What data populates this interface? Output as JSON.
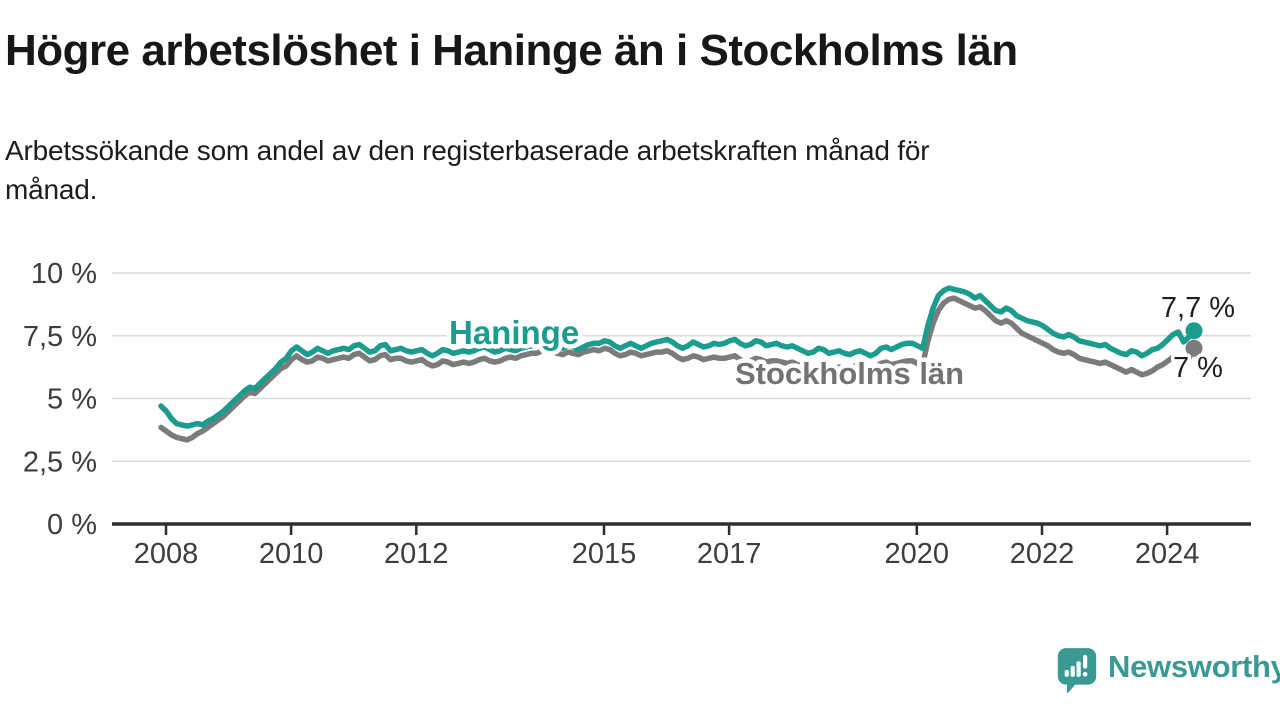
{
  "header": {
    "title": "Högre arbetslöshet i Haninge än i Stockholms län",
    "subtitle_lines": [
      "Arbetssökande som andel av den registerbaserade arbetskraften månad för",
      "månad."
    ]
  },
  "branding": {
    "logo_text": "Newsworthy",
    "logo_icon": "newsworthy-speech-bubble-bar-chart-icon",
    "brand_color": "#3a9a93"
  },
  "chart_data": {
    "type": "line",
    "title": "Högre arbetslöshet i Haninge än i Stockholms län",
    "subtitle": "Arbetssökande som andel av den registerbaserade arbetskraften månad för månad.",
    "unit": "%",
    "x_monthly_from": "2008-01",
    "x_monthly_to": "2024-07",
    "grid": "horizontal",
    "legend": "inline-labels",
    "ylim": [
      0,
      10
    ],
    "y_tick_values": [
      10,
      7.5,
      5,
      2.5,
      0
    ],
    "y_tick_labels": [
      "10 %",
      "7,5 %",
      "5 %",
      "2,5 %",
      "0 %"
    ],
    "x_tick_years": [
      2008,
      2010,
      2012,
      2015,
      2017,
      2020,
      2022,
      2024
    ],
    "x_tick_labels": [
      "2008",
      "2010",
      "2012",
      "2015",
      "2017",
      "2020",
      "2022",
      "2024"
    ],
    "axis_color": "#2f2f2f",
    "gridline_color": "#d9d9d9",
    "series": [
      {
        "name": "Haninge",
        "color": "#1b9c8e",
        "label_color": "#1b9c8e",
        "end_label": "7,7 %",
        "end_value": 7.7,
        "values": [
          4.7,
          4.5,
          4.2,
          4.0,
          3.95,
          3.9,
          3.95,
          4.0,
          3.95,
          4.1,
          4.2,
          4.35,
          4.5,
          4.7,
          4.9,
          5.1,
          5.3,
          5.45,
          5.4,
          5.6,
          5.8,
          6.0,
          6.2,
          6.45,
          6.6,
          6.9,
          7.05,
          6.9,
          6.75,
          6.85,
          7.0,
          6.9,
          6.8,
          6.9,
          6.95,
          7.0,
          6.95,
          7.1,
          7.15,
          7.0,
          6.85,
          6.9,
          7.1,
          7.15,
          6.9,
          6.95,
          7.0,
          6.9,
          6.85,
          6.9,
          6.95,
          6.8,
          6.7,
          6.8,
          6.95,
          6.9,
          6.8,
          6.85,
          6.9,
          6.85,
          6.9,
          7.0,
          7.05,
          6.95,
          6.85,
          6.9,
          7.0,
          6.95,
          6.9,
          7.0,
          7.05,
          7.1,
          7.1,
          7.2,
          7.25,
          7.15,
          7.05,
          7.0,
          7.1,
          7.05,
          6.95,
          7.05,
          7.15,
          7.2,
          7.2,
          7.3,
          7.25,
          7.1,
          7.0,
          7.1,
          7.2,
          7.1,
          7.0,
          7.1,
          7.2,
          7.25,
          7.3,
          7.35,
          7.25,
          7.1,
          7.0,
          7.1,
          7.25,
          7.15,
          7.05,
          7.1,
          7.2,
          7.15,
          7.2,
          7.3,
          7.35,
          7.2,
          7.1,
          7.15,
          7.3,
          7.25,
          7.1,
          7.15,
          7.2,
          7.1,
          7.05,
          7.1,
          7.0,
          6.9,
          6.8,
          6.85,
          7.0,
          6.95,
          6.8,
          6.85,
          6.9,
          6.8,
          6.75,
          6.85,
          6.9,
          6.8,
          6.7,
          6.8,
          7.0,
          7.05,
          6.95,
          7.05,
          7.15,
          7.2,
          7.2,
          7.1,
          7.0,
          7.9,
          8.6,
          9.1,
          9.3,
          9.4,
          9.35,
          9.3,
          9.25,
          9.15,
          9.0,
          9.1,
          8.9,
          8.7,
          8.5,
          8.45,
          8.6,
          8.5,
          8.3,
          8.2,
          8.1,
          8.05,
          8.0,
          7.9,
          7.75,
          7.6,
          7.5,
          7.45,
          7.55,
          7.45,
          7.3,
          7.25,
          7.2,
          7.15,
          7.1,
          7.15,
          7.0,
          6.9,
          6.8,
          6.75,
          6.9,
          6.85,
          6.7,
          6.8,
          6.95,
          7.0,
          7.15,
          7.35,
          7.55,
          7.65,
          7.25,
          7.45,
          7.7
        ]
      },
      {
        "name": "Stockholms län",
        "color": "#7b7b7b",
        "label_color": "#737373",
        "end_label": "7 %",
        "end_value": 7.0,
        "values": [
          3.85,
          3.7,
          3.55,
          3.45,
          3.4,
          3.35,
          3.45,
          3.6,
          3.7,
          3.85,
          4.0,
          4.15,
          4.3,
          4.5,
          4.7,
          4.9,
          5.1,
          5.25,
          5.2,
          5.4,
          5.6,
          5.8,
          6.0,
          6.2,
          6.3,
          6.55,
          6.7,
          6.55,
          6.45,
          6.5,
          6.65,
          6.6,
          6.5,
          6.55,
          6.6,
          6.65,
          6.6,
          6.75,
          6.8,
          6.65,
          6.5,
          6.55,
          6.7,
          6.75,
          6.55,
          6.6,
          6.6,
          6.5,
          6.45,
          6.5,
          6.55,
          6.4,
          6.3,
          6.35,
          6.5,
          6.45,
          6.35,
          6.4,
          6.45,
          6.4,
          6.45,
          6.55,
          6.6,
          6.5,
          6.45,
          6.5,
          6.6,
          6.65,
          6.6,
          6.7,
          6.75,
          6.8,
          6.8,
          6.9,
          6.95,
          6.85,
          6.8,
          6.75,
          6.85,
          6.8,
          6.75,
          6.85,
          6.9,
          6.95,
          6.9,
          7.0,
          6.95,
          6.8,
          6.7,
          6.75,
          6.85,
          6.8,
          6.7,
          6.75,
          6.8,
          6.85,
          6.85,
          6.9,
          6.8,
          6.65,
          6.55,
          6.6,
          6.7,
          6.65,
          6.55,
          6.6,
          6.65,
          6.6,
          6.6,
          6.65,
          6.7,
          6.55,
          6.45,
          6.5,
          6.6,
          6.55,
          6.45,
          6.5,
          6.5,
          6.45,
          6.4,
          6.45,
          6.35,
          6.25,
          6.15,
          6.2,
          6.3,
          6.25,
          6.15,
          6.2,
          6.25,
          6.2,
          6.2,
          6.3,
          6.35,
          6.25,
          6.2,
          6.25,
          6.4,
          6.45,
          6.35,
          6.4,
          6.45,
          6.5,
          6.5,
          6.4,
          6.35,
          7.3,
          8.0,
          8.5,
          8.8,
          8.95,
          9.0,
          8.9,
          8.8,
          8.7,
          8.6,
          8.65,
          8.5,
          8.3,
          8.1,
          8.0,
          8.1,
          8.0,
          7.8,
          7.6,
          7.5,
          7.4,
          7.3,
          7.2,
          7.1,
          6.95,
          6.85,
          6.8,
          6.85,
          6.75,
          6.6,
          6.55,
          6.5,
          6.45,
          6.4,
          6.45,
          6.35,
          6.25,
          6.15,
          6.05,
          6.15,
          6.05,
          5.95,
          6.0,
          6.1,
          6.25,
          6.35,
          6.5,
          6.65,
          6.6,
          6.45,
          6.6,
          7.0
        ]
      }
    ]
  }
}
